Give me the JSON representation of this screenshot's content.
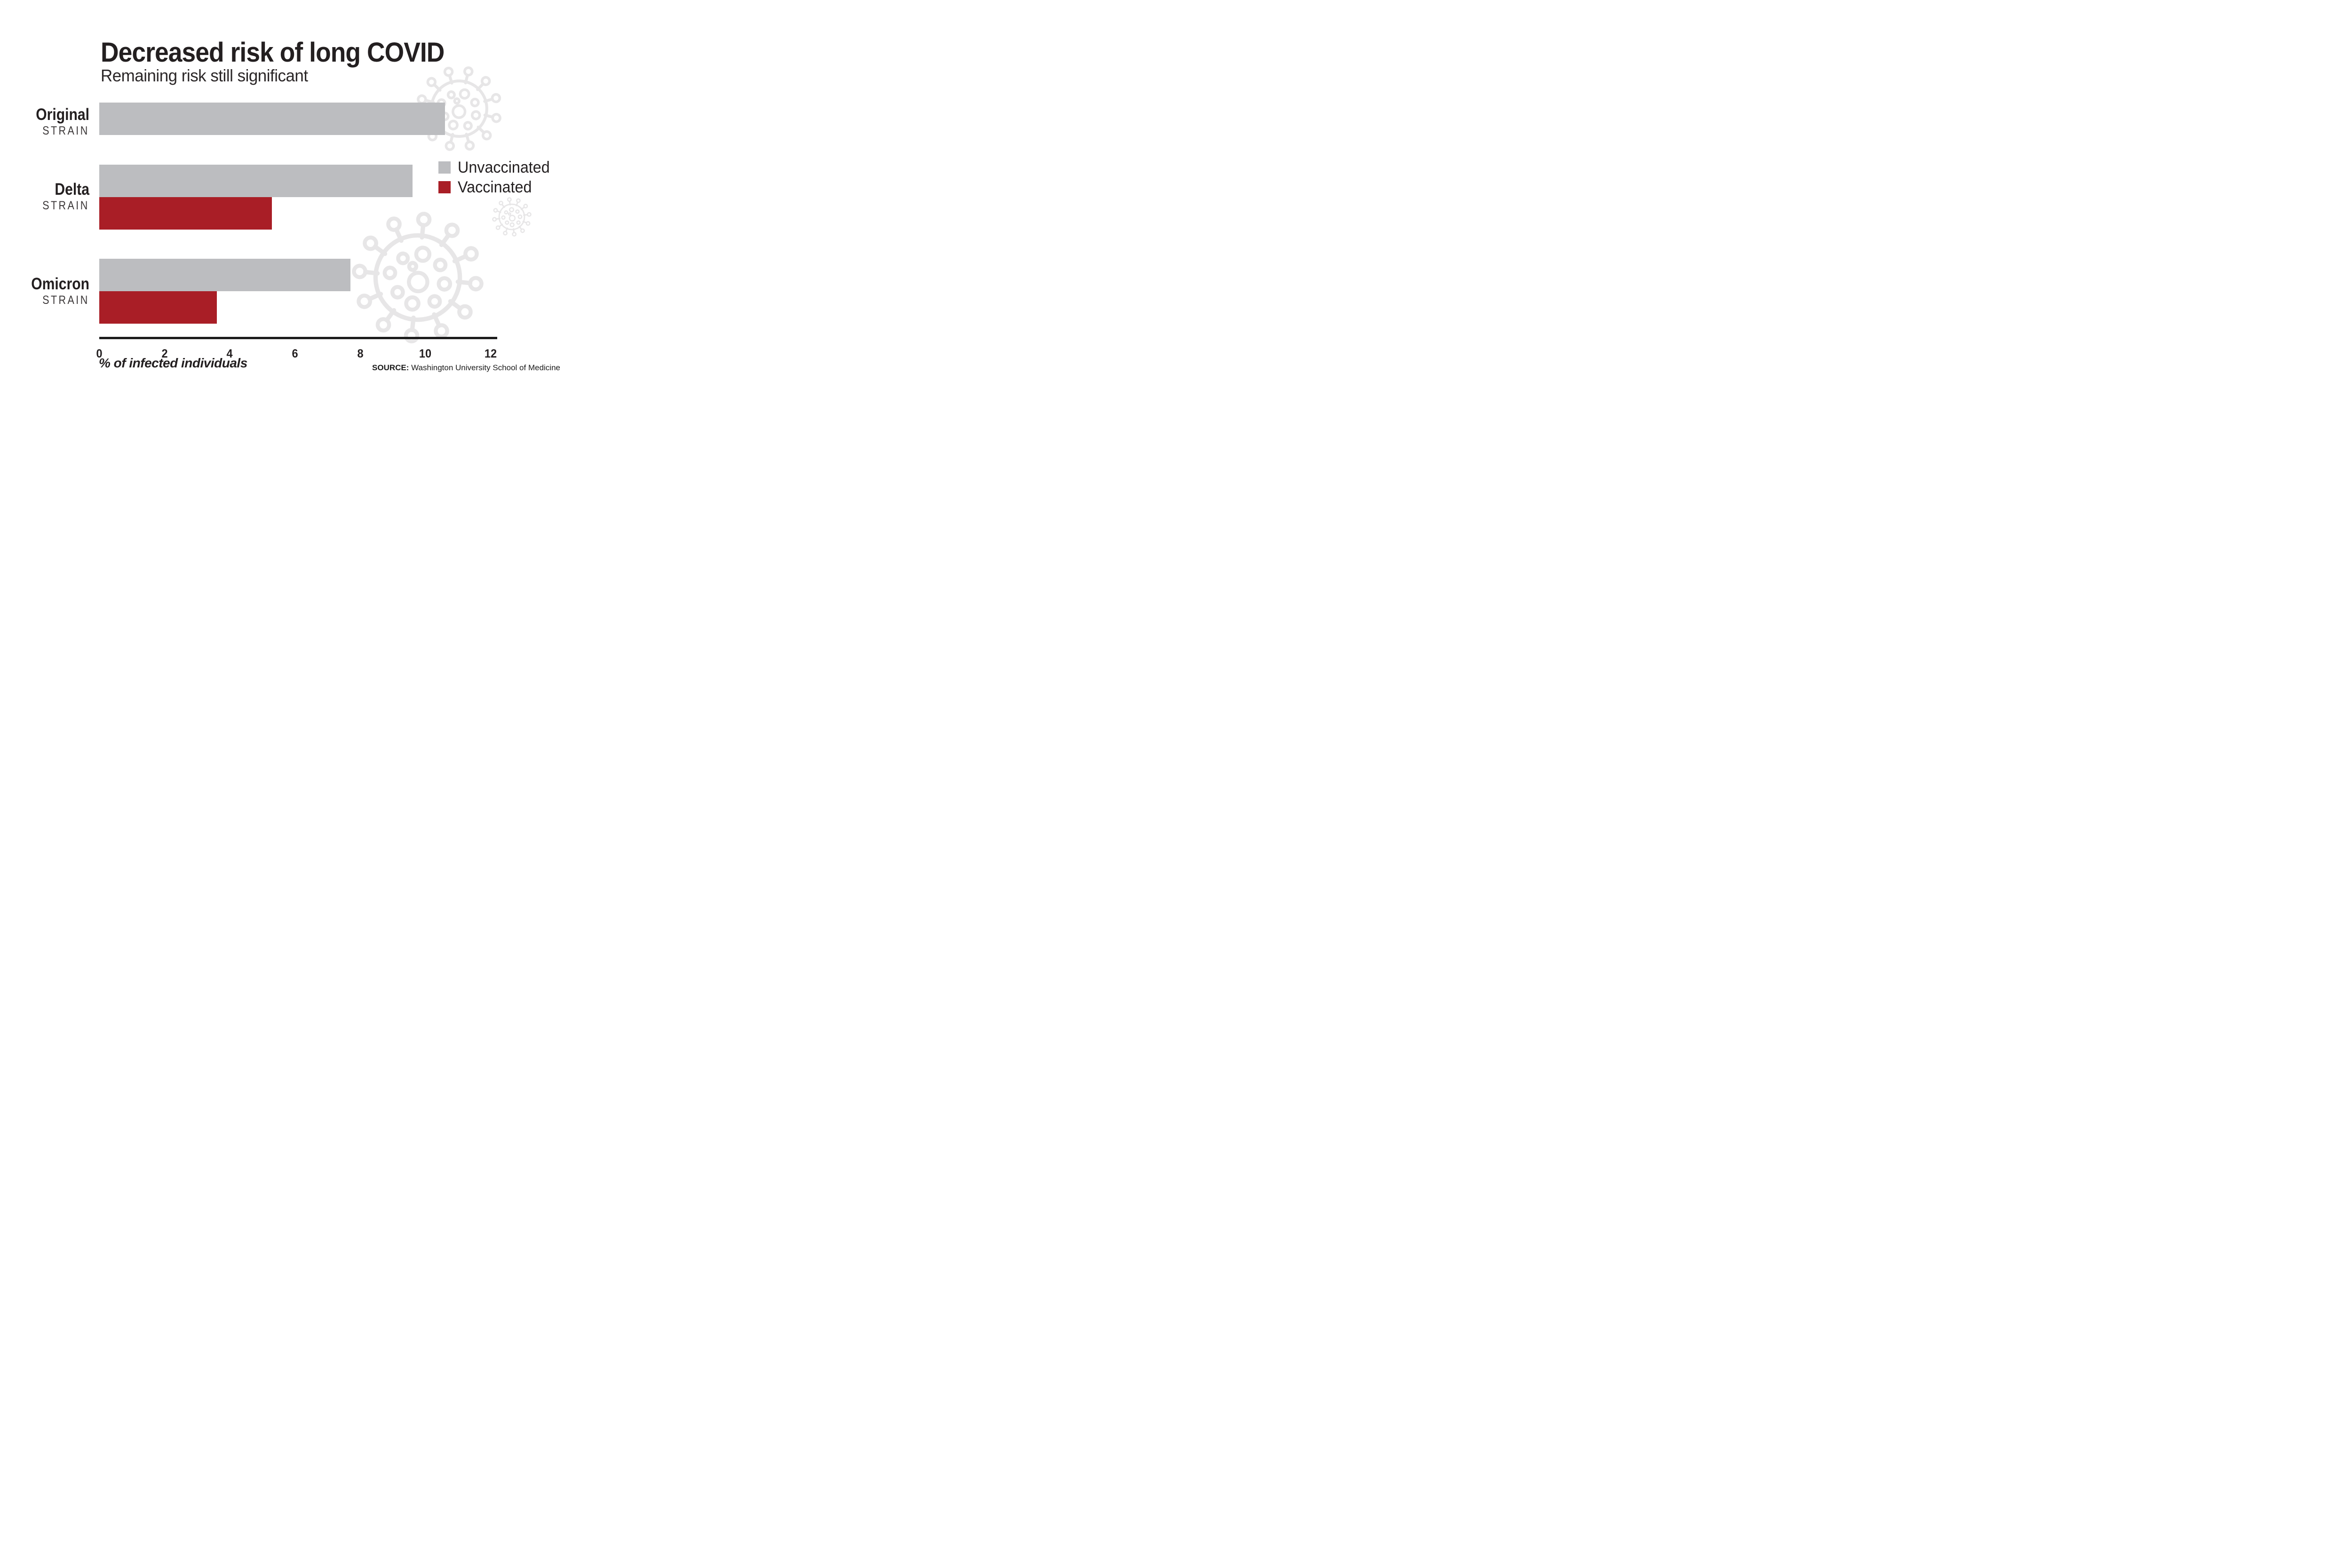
{
  "header": {
    "title": "Decreased risk of long COVID",
    "subtitle": "Remaining risk still significant"
  },
  "legend": {
    "position": "right",
    "items": [
      {
        "label": "Unvaccinated",
        "color": "#bcbdc0"
      },
      {
        "label": "Vaccinated",
        "color": "#a91e26"
      }
    ]
  },
  "source": {
    "prefix": "SOURCE:",
    "text": " Washington University School of Medicine"
  },
  "colors": {
    "bar_gray": "#bcbdc0",
    "bar_red": "#a91e26",
    "text": "#231f20",
    "axis_line": "#1c1c1c",
    "watermark": "#e7e6e7"
  },
  "icons": [
    "coronavirus-watermark-icon"
  ],
  "chart_data": {
    "type": "bar",
    "orientation": "horizontal",
    "title": "Decreased risk of long COVID",
    "subtitle": "Remaining risk still significant",
    "categories": [
      "Original",
      "Delta",
      "Omicron"
    ],
    "category_sublabel": "STRAIN",
    "series": [
      {
        "name": "Unvaccinated",
        "color": "#bcbdc0",
        "values": [
          10.6,
          9.6,
          7.7
        ]
      },
      {
        "name": "Vaccinated",
        "color": "#a91e26",
        "values": [
          null,
          5.3,
          3.6
        ]
      }
    ],
    "xlabel": "% of infected individuals",
    "ylabel": "",
    "xlim": [
      0,
      12
    ],
    "xticks": [
      0,
      2,
      4,
      6,
      8,
      10,
      12
    ],
    "grid": false,
    "legend_position": "right"
  }
}
